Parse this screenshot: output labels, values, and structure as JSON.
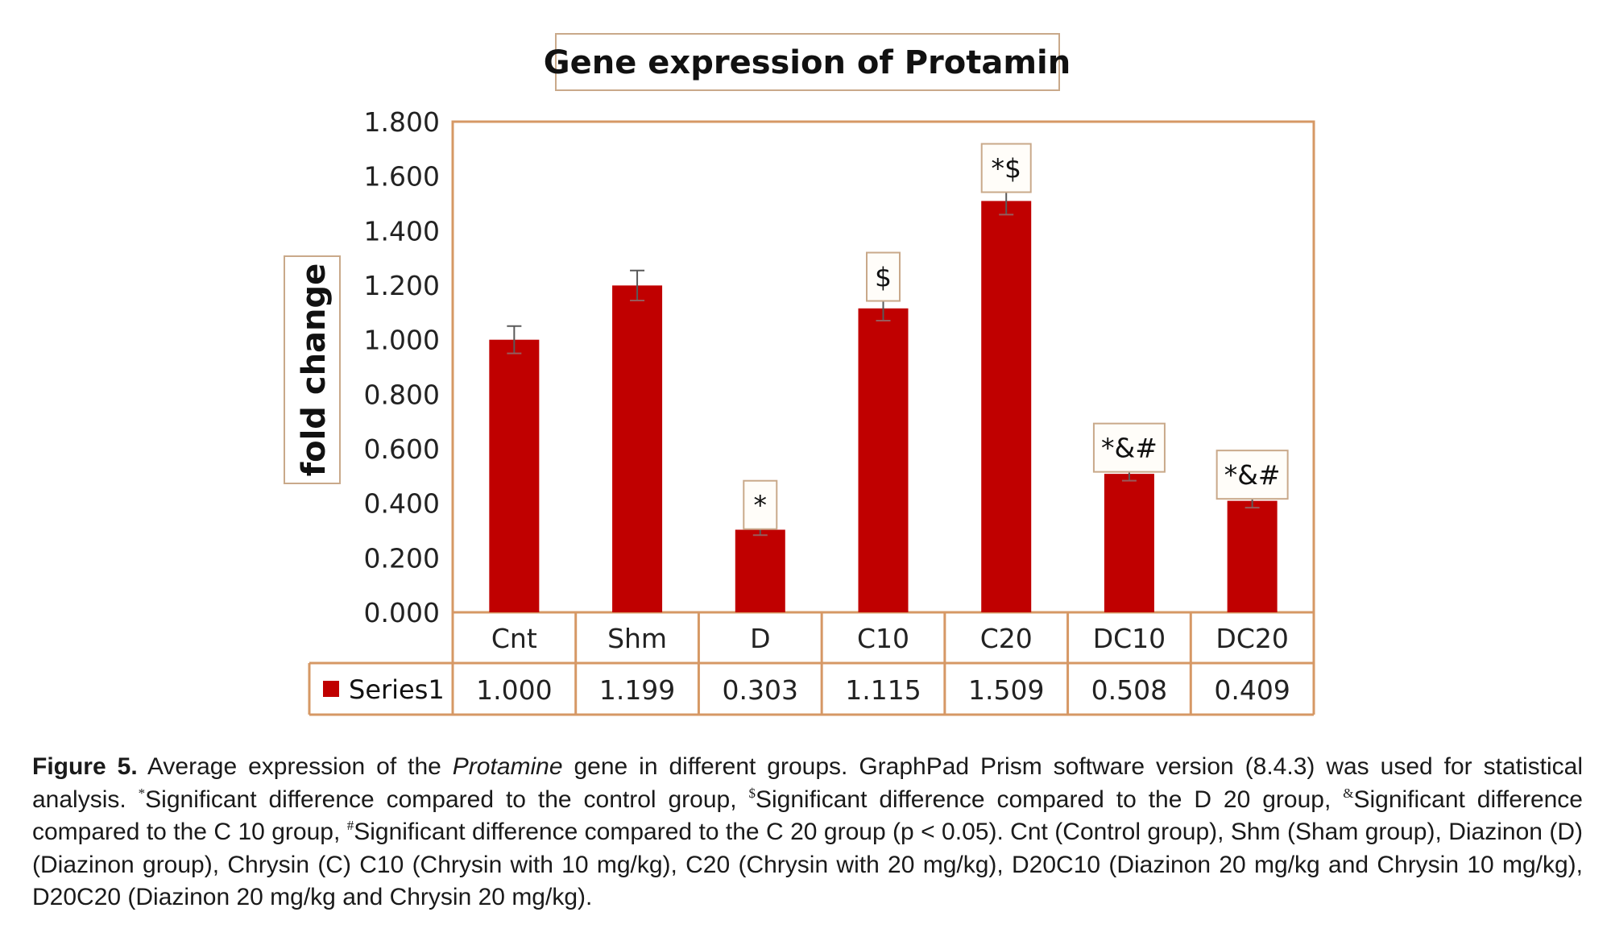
{
  "chart_data": {
    "type": "bar",
    "title": "Gene expression of Protamin",
    "ylabel": "fold change",
    "xlabel": "",
    "ylim": [
      0,
      1.8
    ],
    "yticks": [
      "0.000",
      "0.200",
      "0.400",
      "0.600",
      "0.800",
      "1.000",
      "1.200",
      "1.400",
      "1.600",
      "1.800"
    ],
    "ytick_values": [
      0,
      0.2,
      0.4,
      0.6,
      0.8,
      1.0,
      1.2,
      1.4,
      1.6,
      1.8
    ],
    "grid": false,
    "legend": "data-table",
    "categories": [
      "Cnt",
      "Shm",
      "D",
      "C10",
      "C20",
      "DC10",
      "DC20"
    ],
    "series": [
      {
        "name": "Series1",
        "color": "#C00000",
        "values": [
          1.0,
          1.199,
          0.303,
          1.115,
          1.509,
          0.508,
          0.409
        ],
        "value_labels": [
          "1.000",
          "1.199",
          "0.303",
          "1.115",
          "1.509",
          "0.508",
          "0.409"
        ],
        "errors": [
          0.05,
          0.055,
          0.02,
          0.045,
          0.05,
          0.025,
          0.025
        ]
      }
    ],
    "annotations": [
      "",
      "",
      "*",
      "$",
      "*$",
      "*&#",
      "*&#"
    ]
  },
  "colors": {
    "frame": "#D69865",
    "label_box": "#C9A98A",
    "error_bar": "#595959"
  },
  "caption": {
    "label": "Figure 5.",
    "t1": " Average expression of the ",
    "gene": "Protamine",
    "t2": " gene in different groups. GraphPad Prism software version (8.4.3) was used for statistical analysis. ",
    "m1": "*",
    "t3": "Significant difference compared to the control group, ",
    "m2": "$",
    "t4": "Significant difference compared to the D 20 group, ",
    "m3": "&",
    "t5": "Significant difference compared to the C 10 group, ",
    "m4": "#",
    "t6": "Significant difference compared to the C 20 group (p < 0.05). Cnt (Control group), Shm (Sham group), Diazinon (D) (Diazinon group), Chrysin (C) C10 (Chrysin with 10 mg/kg), C20 (Chrysin with 20 mg/kg), D20C10 (Diazinon 20 mg/kg and Chrysin 10 mg/kg), D20C20 (Diazinon 20 mg/kg and Chrysin 20 mg/kg)."
  }
}
